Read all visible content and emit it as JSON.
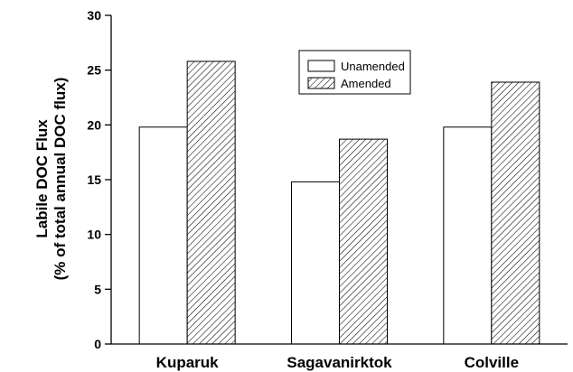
{
  "chart_data": {
    "type": "bar",
    "title": "",
    "xlabel": "",
    "ylabel_line1": "Labile DOC Flux",
    "ylabel_line2": "(% of total annual DOC flux)",
    "ylim": [
      0,
      30
    ],
    "yticks": [
      0,
      5,
      10,
      15,
      20,
      25,
      30
    ],
    "categories": [
      "Kuparuk",
      "Sagavanirktok",
      "Colville"
    ],
    "series": [
      {
        "name": "Unamended",
        "values": [
          19.8,
          14.8,
          19.8
        ],
        "fill": "solid-white"
      },
      {
        "name": "Amended",
        "values": [
          25.8,
          18.7,
          23.9
        ],
        "fill": "diagonal-hatch"
      }
    ],
    "legend_position": "top-center",
    "grid": false,
    "colors": {
      "bar_stroke": "#000000",
      "bar_fill": "#ffffff",
      "hatch": "#000000"
    }
  }
}
